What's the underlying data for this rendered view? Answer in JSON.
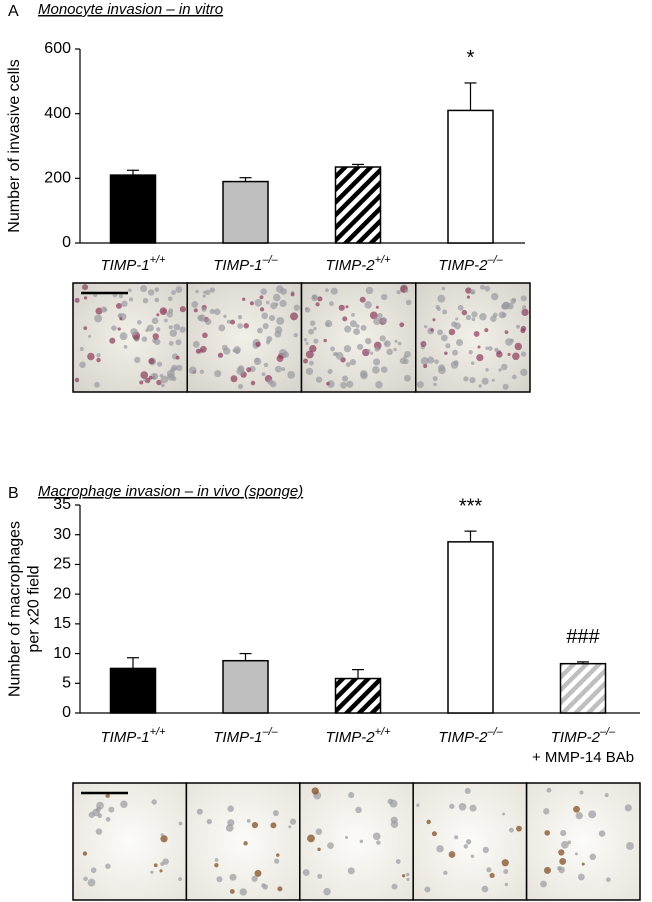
{
  "chart_data": [
    {
      "type": "bar",
      "panel": "A",
      "title": "Monocyte invasion – in vitro",
      "ylabel": [
        "Number of invasive cells"
      ],
      "categories": [
        "TIMP-1",
        "TIMP-1",
        "TIMP-2",
        "TIMP-2"
      ],
      "category_superscripts": [
        "+/+",
        "–/–",
        "+/+",
        "–/–"
      ],
      "category_sublabels": [
        null,
        null,
        null,
        null
      ],
      "values": [
        210,
        190,
        235,
        410
      ],
      "errors": [
        15,
        12,
        8,
        85
      ],
      "colors": [
        "#000000",
        "#bfbfbf",
        "#000000",
        "#ffffff"
      ],
      "hatched": [
        false,
        false,
        true,
        false
      ],
      "annotations": [
        null,
        null,
        null,
        "*"
      ],
      "ylim": [
        0,
        600
      ],
      "yticks": [
        0,
        200,
        400,
        600
      ]
    },
    {
      "type": "bar",
      "panel": "B",
      "title": "Macrophage invasion – in vivo (sponge)",
      "ylabel": [
        "Number of macrophages",
        "per x20 field"
      ],
      "categories": [
        "TIMP-1",
        "TIMP-1",
        "TIMP-2",
        "TIMP-2",
        "TIMP-2"
      ],
      "category_superscripts": [
        "+/+",
        "–/–",
        "+/+",
        "–/–",
        "–/–"
      ],
      "category_sublabels": [
        null,
        null,
        null,
        null,
        "+ MMP-14 BAb"
      ],
      "values": [
        7.5,
        8.8,
        5.8,
        28.8,
        8.3
      ],
      "errors": [
        1.8,
        1.2,
        1.5,
        1.8,
        0.3
      ],
      "colors": [
        "#000000",
        "#bfbfbf",
        "#000000",
        "#ffffff",
        "#bfbfbf"
      ],
      "hatched": [
        false,
        false,
        true,
        false,
        true
      ],
      "annotations": [
        null,
        null,
        null,
        "***",
        "###"
      ],
      "ylim": [
        0,
        35
      ],
      "yticks": [
        0,
        5,
        10,
        15,
        20,
        25,
        30,
        35
      ]
    }
  ]
}
